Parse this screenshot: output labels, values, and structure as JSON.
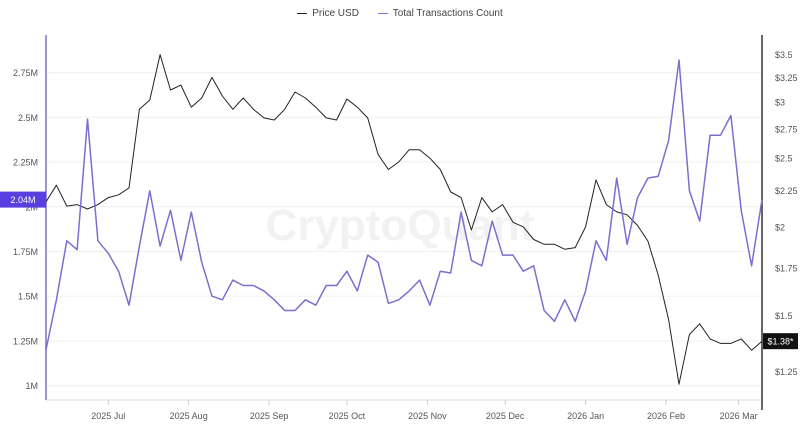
{
  "legend": [
    {
      "name": "Price USD",
      "color": "#222222"
    },
    {
      "name": "Total Transactions Count",
      "color": "#7b6fd0"
    }
  ],
  "watermark": "CryptoQuant",
  "chart_data": {
    "type": "line",
    "title": "",
    "x": [
      "2025-06-07",
      "2025-06-11",
      "2025-06-15",
      "2025-06-19",
      "2025-06-23",
      "2025-06-27",
      "2025-07-01",
      "2025-07-05",
      "2025-07-09",
      "2025-07-13",
      "2025-07-17",
      "2025-07-21",
      "2025-07-25",
      "2025-07-29",
      "2025-08-02",
      "2025-08-06",
      "2025-08-10",
      "2025-08-14",
      "2025-08-18",
      "2025-08-22",
      "2025-08-26",
      "2025-08-30",
      "2025-09-03",
      "2025-09-07",
      "2025-09-11",
      "2025-09-15",
      "2025-09-19",
      "2025-09-23",
      "2025-09-27",
      "2025-10-01",
      "2025-10-05",
      "2025-10-09",
      "2025-10-13",
      "2025-10-17",
      "2025-10-21",
      "2025-10-25",
      "2025-10-29",
      "2025-11-02",
      "2025-11-06",
      "2025-11-10",
      "2025-11-14",
      "2025-11-18",
      "2025-11-22",
      "2025-11-26",
      "2025-11-30",
      "2025-12-04",
      "2025-12-08",
      "2025-12-12",
      "2025-12-16",
      "2025-12-20",
      "2025-12-24",
      "2025-12-28",
      "2026-01-01",
      "2026-01-05",
      "2026-01-09",
      "2026-01-13",
      "2026-01-17",
      "2026-01-21",
      "2026-01-25",
      "2026-01-29",
      "2026-02-02",
      "2026-02-06",
      "2026-02-10",
      "2026-02-14",
      "2026-02-18",
      "2026-02-22",
      "2026-02-26",
      "2026-03-02",
      "2026-03-06",
      "2026-03-10"
    ],
    "series": [
      {
        "name": "Price USD",
        "axis": "right",
        "color": "#222222",
        "values": [
          2.17,
          2.29,
          2.14,
          2.15,
          2.12,
          2.15,
          2.2,
          2.22,
          2.27,
          2.93,
          3.02,
          3.5,
          3.12,
          3.17,
          2.95,
          3.04,
          3.25,
          3.06,
          2.93,
          3.04,
          2.93,
          2.85,
          2.83,
          2.93,
          3.1,
          3.04,
          2.95,
          2.85,
          2.83,
          3.03,
          2.95,
          2.85,
          2.53,
          2.41,
          2.47,
          2.57,
          2.57,
          2.5,
          2.41,
          2.24,
          2.2,
          1.98,
          2.2,
          2.1,
          2.15,
          2.03,
          2.0,
          1.92,
          1.89,
          1.89,
          1.86,
          1.87,
          2.0,
          2.33,
          2.15,
          2.1,
          2.08,
          2.01,
          1.91,
          1.71,
          1.48,
          1.2,
          1.41,
          1.46,
          1.39,
          1.37,
          1.37,
          1.39,
          1.34,
          1.38
        ]
      },
      {
        "name": "Total Transactions Count",
        "axis": "left",
        "color": "#7b6fd0",
        "values": [
          1.2,
          1.48,
          1.81,
          1.76,
          2.49,
          1.81,
          1.74,
          1.64,
          1.45,
          1.78,
          2.09,
          1.78,
          1.98,
          1.7,
          1.97,
          1.69,
          1.5,
          1.48,
          1.59,
          1.56,
          1.56,
          1.53,
          1.48,
          1.42,
          1.42,
          1.48,
          1.45,
          1.56,
          1.56,
          1.64,
          1.53,
          1.73,
          1.69,
          1.46,
          1.48,
          1.53,
          1.59,
          1.45,
          1.64,
          1.63,
          1.97,
          1.7,
          1.67,
          1.92,
          1.73,
          1.73,
          1.64,
          1.67,
          1.42,
          1.36,
          1.48,
          1.36,
          1.53,
          1.81,
          1.7,
          2.16,
          1.79,
          2.05,
          2.16,
          2.17,
          2.37,
          2.82,
          2.09,
          1.92,
          2.4,
          2.4,
          2.51,
          1.98,
          1.67,
          2.04
        ]
      }
    ],
    "x_ticks": [
      {
        "date": "2025-07-01",
        "label": "2025 Jul"
      },
      {
        "date": "2025-08-01",
        "label": "2025 Aug"
      },
      {
        "date": "2025-09-01",
        "label": "2025 Sep"
      },
      {
        "date": "2025-10-01",
        "label": "2025 Oct"
      },
      {
        "date": "2025-11-01",
        "label": "2025 Nov"
      },
      {
        "date": "2025-12-01",
        "label": "2025 Dec"
      },
      {
        "date": "2026-01-01",
        "label": "2026 Jan"
      },
      {
        "date": "2026-02-01",
        "label": "2026 Feb"
      },
      {
        "date": "2026-03-01",
        "label": "2026 Mar"
      }
    ],
    "y_left": {
      "unit": "M",
      "scale": "linear",
      "range": [
        0.92,
        2.96
      ],
      "ticks": [
        {
          "v": 1,
          "label": "1M"
        },
        {
          "v": 1.25,
          "label": "1.25M"
        },
        {
          "v": 1.5,
          "label": "1.5M"
        },
        {
          "v": 1.75,
          "label": "1.75M"
        },
        {
          "v": 2,
          "label": "2M"
        },
        {
          "v": 2.25,
          "label": "2.25M"
        },
        {
          "v": 2.5,
          "label": "2.5M"
        },
        {
          "v": 2.75,
          "label": "2.75M"
        }
      ],
      "current": {
        "v": 2.04,
        "label": "2.04M",
        "color": "#5a3fe0"
      }
    },
    "y_right": {
      "unit": "USD",
      "scale": "log",
      "range": [
        1.14,
        3.73
      ],
      "ticks": [
        {
          "v": 1.25,
          "label": "$1.25"
        },
        {
          "v": 1.5,
          "label": "$1.5"
        },
        {
          "v": 1.75,
          "label": "$1.75"
        },
        {
          "v": 2,
          "label": "$2"
        },
        {
          "v": 2.25,
          "label": "$2.25"
        },
        {
          "v": 2.5,
          "label": "$2.5"
        },
        {
          "v": 2.75,
          "label": "$2.75"
        },
        {
          "v": 3,
          "label": "$3"
        },
        {
          "v": 3.25,
          "label": "$3.25"
        },
        {
          "v": 3.5,
          "label": "$3.5"
        }
      ],
      "current": {
        "v": 1.38,
        "label": "$1.38*",
        "color": "#111111"
      }
    },
    "grid": true,
    "legend_position": "top-center"
  }
}
